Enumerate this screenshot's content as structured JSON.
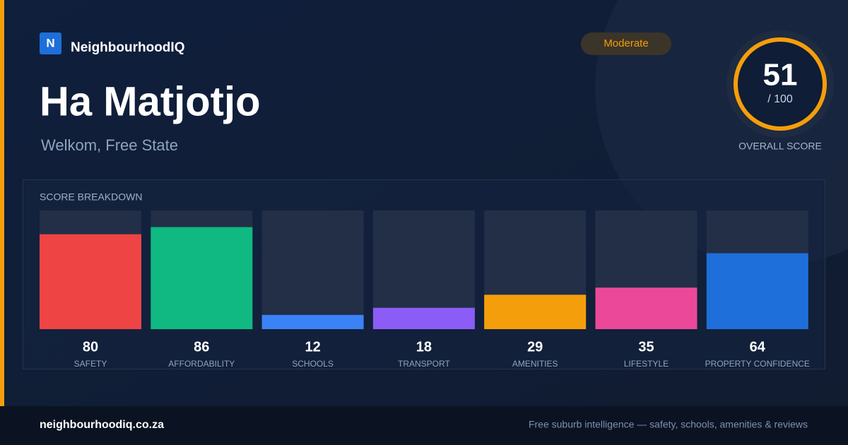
{
  "brand": "NeighbourhoodIQ",
  "logo_letter": "N",
  "title": "Ha Matjotjo",
  "subtitle": "Welkom, Free State",
  "badge": "Moderate",
  "score": {
    "value": 51,
    "max_label": "/ 100",
    "label": "OVERALL SCORE"
  },
  "chart_data": {
    "type": "bar",
    "title": "SCORE BREAKDOWN",
    "categories": [
      "SAFETY",
      "AFFORDABILITY",
      "SCHOOLS",
      "TRANSPORT",
      "AMENITIES",
      "LIFESTYLE",
      "PROPERTY CONFIDENCE"
    ],
    "values": [
      80,
      86,
      12,
      18,
      29,
      35,
      64
    ],
    "colors": [
      "#ef4444",
      "#10b981",
      "#3b82f6",
      "#8b5cf6",
      "#f59e0b",
      "#ec4899",
      "#1e6fd9"
    ],
    "ylim": [
      0,
      100
    ]
  },
  "footer": {
    "site": "neighbourhoodiq.co.za",
    "tagline": "Free suburb intelligence — safety, schools, amenities & reviews"
  }
}
